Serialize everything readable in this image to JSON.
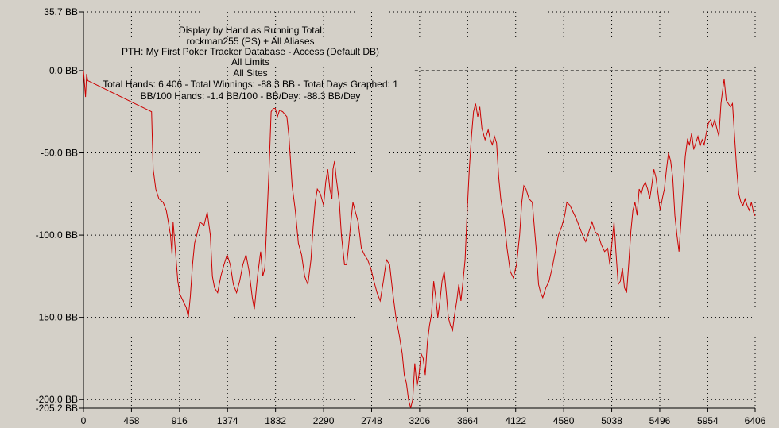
{
  "chart_data": {
    "type": "line",
    "title_lines": [
      "Display by Hand as Running Total",
      "rockman255 (PS) + All Aliases",
      "PTH: My First Poker Tracker Database - Access (Default DB)",
      "All Limits",
      "All Sites",
      "Total Hands: 6,406 - Total Winnings: -88.3 BB - Total Days Graphed: 1",
      "BB/100 Hands: -1.4 BB/100 - BB/Day: -88.3 BB/Day"
    ],
    "xlabel": "",
    "ylabel": "",
    "xlim": [
      0,
      6406
    ],
    "ylim": [
      -205.2,
      35.7
    ],
    "grid": true,
    "x_ticks": [
      0,
      458,
      916,
      1374,
      1832,
      2290,
      2748,
      3206,
      3664,
      4122,
      4580,
      5038,
      5496,
      5954,
      6406
    ],
    "x_tick_labels": [
      "0",
      "458",
      "916",
      "1374",
      "1832",
      "2290",
      "2748",
      "3206",
      "3664",
      "4122",
      "4580",
      "5038",
      "5496",
      "5954",
      "6406"
    ],
    "y_ticks": [
      35.7,
      0,
      -50,
      -100,
      -150,
      -200,
      -205.2
    ],
    "y_tick_labels": [
      "35.7 BB",
      "0.0 BB",
      "-50.0 BB",
      "-100.0 BB",
      "-150.0 BB",
      "-200.0 BB",
      "-205.2 BB"
    ],
    "reference_line": {
      "y": 0,
      "from_x": 3160
    },
    "series": [
      {
        "color": "#cc0000",
        "points": [
          [
            0,
            0
          ],
          [
            10,
            -8
          ],
          [
            20,
            -16
          ],
          [
            30,
            -2
          ],
          [
            40,
            -6
          ],
          [
            650,
            -25
          ],
          [
            665,
            -60
          ],
          [
            690,
            -72
          ],
          [
            720,
            -78
          ],
          [
            760,
            -80
          ],
          [
            790,
            -85
          ],
          [
            810,
            -92
          ],
          [
            830,
            -100
          ],
          [
            845,
            -112
          ],
          [
            855,
            -92
          ],
          [
            880,
            -112
          ],
          [
            900,
            -128
          ],
          [
            920,
            -136
          ],
          [
            950,
            -140
          ],
          [
            980,
            -144
          ],
          [
            1000,
            -150
          ],
          [
            1020,
            -137
          ],
          [
            1040,
            -118
          ],
          [
            1060,
            -105
          ],
          [
            1080,
            -100
          ],
          [
            1110,
            -92
          ],
          [
            1150,
            -94
          ],
          [
            1180,
            -86
          ],
          [
            1210,
            -100
          ],
          [
            1230,
            -125
          ],
          [
            1250,
            -132
          ],
          [
            1280,
            -135
          ],
          [
            1310,
            -125
          ],
          [
            1340,
            -118
          ],
          [
            1370,
            -112
          ],
          [
            1400,
            -118
          ],
          [
            1430,
            -130
          ],
          [
            1460,
            -135
          ],
          [
            1490,
            -128
          ],
          [
            1520,
            -118
          ],
          [
            1550,
            -112
          ],
          [
            1580,
            -122
          ],
          [
            1610,
            -138
          ],
          [
            1630,
            -145
          ],
          [
            1660,
            -125
          ],
          [
            1690,
            -110
          ],
          [
            1710,
            -125
          ],
          [
            1730,
            -120
          ],
          [
            1750,
            -90
          ],
          [
            1770,
            -60
          ],
          [
            1790,
            -25
          ],
          [
            1810,
            -23
          ],
          [
            1830,
            -23
          ],
          [
            1850,
            -28
          ],
          [
            1870,
            -24
          ],
          [
            1900,
            -25
          ],
          [
            1940,
            -28
          ],
          [
            1960,
            -40
          ],
          [
            1990,
            -70
          ],
          [
            2020,
            -85
          ],
          [
            2050,
            -105
          ],
          [
            2080,
            -112
          ],
          [
            2110,
            -125
          ],
          [
            2140,
            -130
          ],
          [
            2170,
            -115
          ],
          [
            2190,
            -95
          ],
          [
            2210,
            -80
          ],
          [
            2230,
            -72
          ],
          [
            2260,
            -75
          ],
          [
            2290,
            -82
          ],
          [
            2310,
            -68
          ],
          [
            2330,
            -60
          ],
          [
            2350,
            -72
          ],
          [
            2370,
            -78
          ],
          [
            2380,
            -60
          ],
          [
            2395,
            -55
          ],
          [
            2410,
            -65
          ],
          [
            2440,
            -80
          ],
          [
            2460,
            -100
          ],
          [
            2490,
            -118
          ],
          [
            2510,
            -118
          ],
          [
            2530,
            -106
          ],
          [
            2550,
            -92
          ],
          [
            2570,
            -80
          ],
          [
            2590,
            -85
          ],
          [
            2620,
            -92
          ],
          [
            2650,
            -108
          ],
          [
            2680,
            -112
          ],
          [
            2710,
            -115
          ],
          [
            2740,
            -120
          ],
          [
            2770,
            -128
          ],
          [
            2800,
            -135
          ],
          [
            2830,
            -140
          ],
          [
            2860,
            -128
          ],
          [
            2890,
            -115
          ],
          [
            2920,
            -118
          ],
          [
            2950,
            -135
          ],
          [
            2980,
            -150
          ],
          [
            3010,
            -160
          ],
          [
            3040,
            -172
          ],
          [
            3060,
            -185
          ],
          [
            3080,
            -190
          ],
          [
            3100,
            -200
          ],
          [
            3120,
            -205
          ],
          [
            3140,
            -200
          ],
          [
            3160,
            -178
          ],
          [
            3180,
            -192
          ],
          [
            3200,
            -185
          ],
          [
            3220,
            -172
          ],
          [
            3240,
            -175
          ],
          [
            3260,
            -185
          ],
          [
            3280,
            -165
          ],
          [
            3300,
            -155
          ],
          [
            3320,
            -148
          ],
          [
            3340,
            -128
          ],
          [
            3360,
            -138
          ],
          [
            3380,
            -150
          ],
          [
            3400,
            -140
          ],
          [
            3420,
            -128
          ],
          [
            3440,
            -122
          ],
          [
            3460,
            -135
          ],
          [
            3480,
            -150
          ],
          [
            3500,
            -155
          ],
          [
            3520,
            -158
          ],
          [
            3540,
            -148
          ],
          [
            3560,
            -140
          ],
          [
            3580,
            -130
          ],
          [
            3600,
            -140
          ],
          [
            3620,
            -128
          ],
          [
            3640,
            -115
          ],
          [
            3660,
            -85
          ],
          [
            3680,
            -60
          ],
          [
            3700,
            -40
          ],
          [
            3720,
            -25
          ],
          [
            3740,
            -20
          ],
          [
            3760,
            -28
          ],
          [
            3780,
            -22
          ],
          [
            3800,
            -35
          ],
          [
            3830,
            -42
          ],
          [
            3860,
            -36
          ],
          [
            3880,
            -42
          ],
          [
            3900,
            -45
          ],
          [
            3920,
            -40
          ],
          [
            3940,
            -44
          ],
          [
            3960,
            -65
          ],
          [
            3980,
            -78
          ],
          [
            4010,
            -90
          ],
          [
            4040,
            -108
          ],
          [
            4070,
            -122
          ],
          [
            4100,
            -126
          ],
          [
            4130,
            -118
          ],
          [
            4160,
            -100
          ],
          [
            4180,
            -80
          ],
          [
            4200,
            -70
          ],
          [
            4220,
            -72
          ],
          [
            4250,
            -78
          ],
          [
            4280,
            -80
          ],
          [
            4300,
            -95
          ],
          [
            4320,
            -110
          ],
          [
            4340,
            -130
          ],
          [
            4360,
            -135
          ],
          [
            4380,
            -138
          ],
          [
            4410,
            -132
          ],
          [
            4440,
            -128
          ],
          [
            4470,
            -120
          ],
          [
            4500,
            -110
          ],
          [
            4530,
            -100
          ],
          [
            4560,
            -95
          ],
          [
            4590,
            -88
          ],
          [
            4610,
            -80
          ],
          [
            4640,
            -82
          ],
          [
            4670,
            -86
          ],
          [
            4700,
            -90
          ],
          [
            4730,
            -95
          ],
          [
            4760,
            -100
          ],
          [
            4790,
            -104
          ],
          [
            4820,
            -98
          ],
          [
            4850,
            -92
          ],
          [
            4880,
            -98
          ],
          [
            4910,
            -100
          ],
          [
            4940,
            -106
          ],
          [
            4970,
            -110
          ],
          [
            5000,
            -108
          ],
          [
            5020,
            -118
          ],
          [
            5040,
            -105
          ],
          [
            5060,
            -92
          ],
          [
            5080,
            -112
          ],
          [
            5100,
            -130
          ],
          [
            5120,
            -128
          ],
          [
            5140,
            -120
          ],
          [
            5160,
            -132
          ],
          [
            5180,
            -135
          ],
          [
            5200,
            -118
          ],
          [
            5220,
            -98
          ],
          [
            5240,
            -85
          ],
          [
            5260,
            -80
          ],
          [
            5280,
            -88
          ],
          [
            5300,
            -72
          ],
          [
            5320,
            -75
          ],
          [
            5340,
            -70
          ],
          [
            5360,
            -68
          ],
          [
            5380,
            -72
          ],
          [
            5400,
            -78
          ],
          [
            5420,
            -70
          ],
          [
            5440,
            -60
          ],
          [
            5460,
            -65
          ],
          [
            5480,
            -75
          ],
          [
            5500,
            -85
          ],
          [
            5520,
            -78
          ],
          [
            5540,
            -72
          ],
          [
            5560,
            -60
          ],
          [
            5580,
            -50
          ],
          [
            5600,
            -55
          ],
          [
            5620,
            -65
          ],
          [
            5640,
            -88
          ],
          [
            5660,
            -100
          ],
          [
            5680,
            -110
          ],
          [
            5700,
            -90
          ],
          [
            5720,
            -70
          ],
          [
            5740,
            -52
          ],
          [
            5760,
            -42
          ],
          [
            5780,
            -45
          ],
          [
            5800,
            -38
          ],
          [
            5820,
            -48
          ],
          [
            5840,
            -44
          ],
          [
            5860,
            -40
          ],
          [
            5880,
            -46
          ],
          [
            5900,
            -42
          ],
          [
            5920,
            -45
          ],
          [
            5940,
            -38
          ],
          [
            5960,
            -32
          ],
          [
            5980,
            -30
          ],
          [
            6000,
            -34
          ],
          [
            6020,
            -30
          ],
          [
            6040,
            -35
          ],
          [
            6060,
            -40
          ],
          [
            6080,
            -20
          ],
          [
            6100,
            -10
          ],
          [
            6110,
            -5
          ],
          [
            6130,
            -18
          ],
          [
            6150,
            -20
          ],
          [
            6170,
            -22
          ],
          [
            6190,
            -20
          ],
          [
            6210,
            -40
          ],
          [
            6230,
            -60
          ],
          [
            6250,
            -75
          ],
          [
            6270,
            -80
          ],
          [
            6290,
            -82
          ],
          [
            6310,
            -78
          ],
          [
            6330,
            -82
          ],
          [
            6350,
            -85
          ],
          [
            6370,
            -80
          ],
          [
            6390,
            -86
          ],
          [
            6406,
            -88.3
          ]
        ]
      }
    ]
  }
}
